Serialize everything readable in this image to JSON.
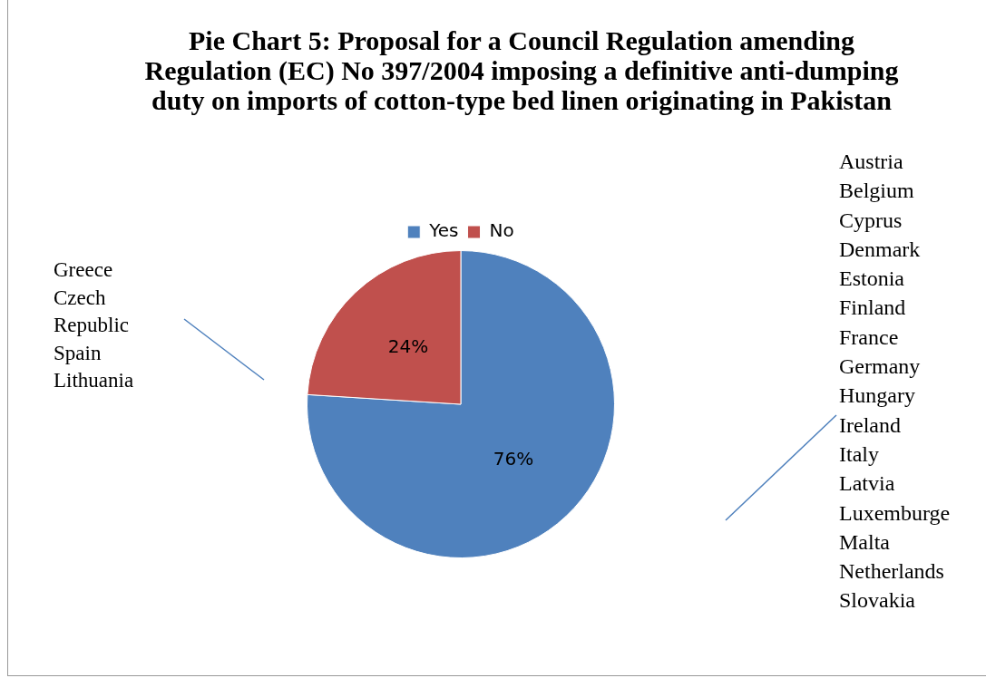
{
  "chart_data": {
    "type": "pie",
    "title": "Pie Chart 5: Proposal for a Council Regulation amending Regulation (EC) No 397/2004 imposing a definitive anti-dumping duty on imports of cotton-type bed linen originating in Pakistan",
    "categories": [
      "Yes",
      "No"
    ],
    "values": [
      76,
      24
    ],
    "colors": [
      "#4f81bd",
      "#c0504d"
    ],
    "value_labels": [
      "76%",
      "24%"
    ],
    "legend": "top",
    "annotations": [
      "Greece\nCzech\nRepublic\nSpain\nLithuania",
      "Austria\nBelgium\nCyprus\nDenmark\nEstonia\nFinland\nFrance\nGermany\nHungary\nIreland\nItaly\nLatvia\nLuxemburge\nMalta\nNetherlands\nSlovakia"
    ]
  }
}
